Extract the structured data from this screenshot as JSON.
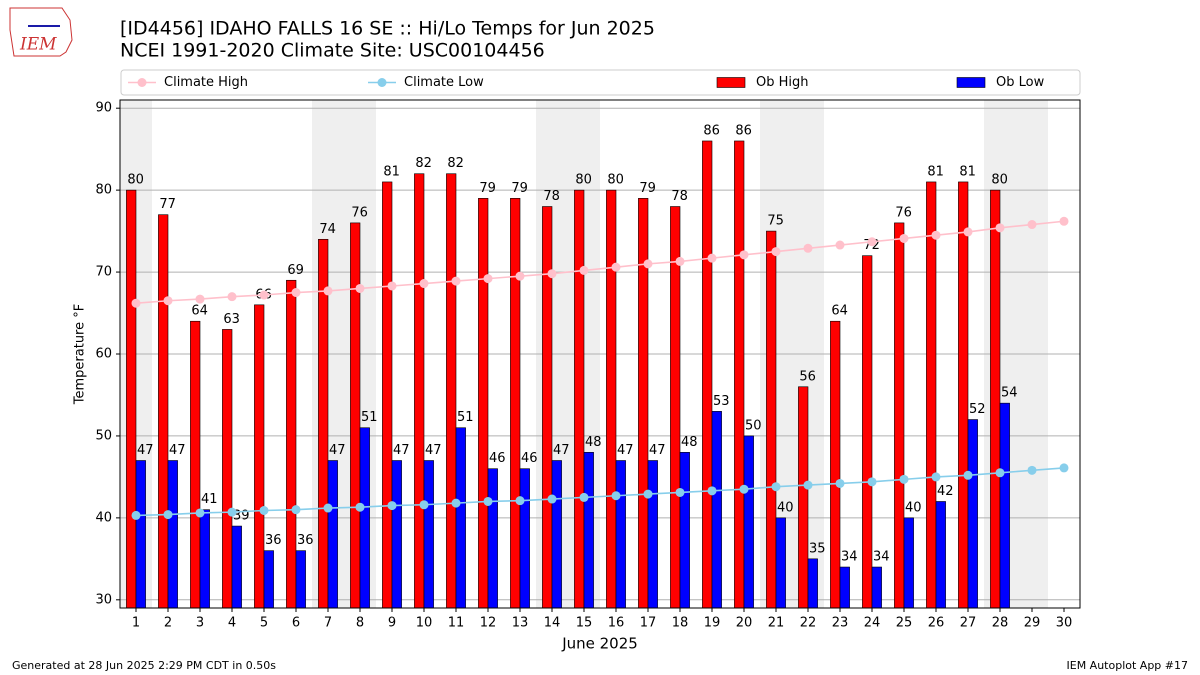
{
  "chart_data": {
    "type": "bar",
    "logo": "IEM",
    "title": "[ID4456] IDAHO FALLS 16 SE :: Hi/Lo Temps for Jun 2025",
    "subtitle": "NCEI 1991-2020 Climate Site: USC00104456",
    "xlabel": "June 2025",
    "ylabel": "Temperature °F",
    "footer_left": "Generated at 28 Jun 2025 2:29 PM CDT in 0.50s",
    "footer_right": "IEM Autoplot App #17",
    "x": [
      1,
      2,
      3,
      4,
      5,
      6,
      7,
      8,
      9,
      10,
      11,
      12,
      13,
      14,
      15,
      16,
      17,
      18,
      19,
      20,
      21,
      22,
      23,
      24,
      25,
      26,
      27,
      28,
      29,
      30
    ],
    "xlim": [
      0.5,
      30.5
    ],
    "xticks": [
      1,
      2,
      3,
      4,
      5,
      6,
      7,
      8,
      9,
      10,
      11,
      12,
      13,
      14,
      15,
      16,
      17,
      18,
      19,
      20,
      21,
      22,
      23,
      24,
      25,
      26,
      27,
      28,
      29,
      30
    ],
    "ylim": [
      29,
      91
    ],
    "yticks": [
      30,
      40,
      50,
      60,
      70,
      80,
      90
    ],
    "grid": true,
    "weekend_days": [
      1,
      7,
      8,
      14,
      15,
      21,
      22,
      28,
      29
    ],
    "weekend_color": "#efefef",
    "series": [
      {
        "name": "Climate High",
        "style": "line",
        "color": "#ffc0cb",
        "values": [
          66.2,
          66.5,
          66.7,
          67.0,
          67.2,
          67.5,
          67.7,
          68.0,
          68.3,
          68.6,
          68.9,
          69.2,
          69.5,
          69.8,
          70.2,
          70.6,
          71.0,
          71.3,
          71.7,
          72.1,
          72.5,
          72.9,
          73.3,
          73.7,
          74.1,
          74.5,
          74.9,
          75.4,
          75.8,
          76.2
        ]
      },
      {
        "name": "Climate Low",
        "style": "line",
        "color": "#87ceeb",
        "values": [
          40.3,
          40.4,
          40.6,
          40.7,
          40.9,
          41.0,
          41.2,
          41.3,
          41.5,
          41.6,
          41.8,
          42.0,
          42.1,
          42.3,
          42.5,
          42.7,
          42.9,
          43.1,
          43.3,
          43.5,
          43.8,
          44.0,
          44.2,
          44.4,
          44.7,
          45.0,
          45.2,
          45.5,
          45.8,
          46.1
        ]
      },
      {
        "name": "Ob High",
        "style": "bar",
        "color": "#ff0000",
        "values": [
          80,
          77,
          64,
          63,
          66,
          69,
          74,
          76,
          81,
          82,
          82,
          79,
          79,
          78,
          80,
          80,
          79,
          78,
          86,
          86,
          75,
          56,
          64,
          72,
          76,
          81,
          81,
          80,
          null,
          null
        ]
      },
      {
        "name": "Ob Low",
        "style": "bar",
        "color": "#0000ff",
        "values": [
          47,
          47,
          41,
          39,
          36,
          36,
          47,
          51,
          47,
          47,
          51,
          46,
          46,
          47,
          48,
          47,
          47,
          48,
          53,
          50,
          40,
          35,
          34,
          34,
          40,
          42,
          52,
          54,
          null,
          null
        ]
      }
    ]
  }
}
